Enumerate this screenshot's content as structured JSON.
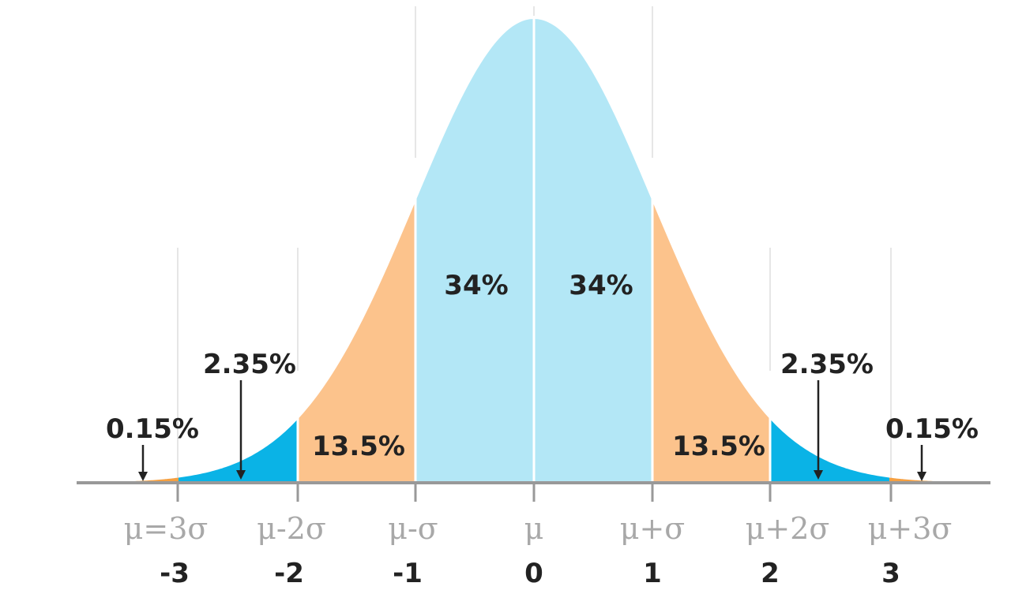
{
  "colors": {
    "tail": "#f5a042",
    "two_sigma": "#0ab3e6",
    "one_sigma": "#fcc38c",
    "center": "#b3e7f6",
    "axis": "#999999",
    "guides": "#e6e6e6",
    "text": "#222222",
    "symbols": "#a8a8a8"
  },
  "regions": [
    {
      "id": "left-tail",
      "from": -3.6,
      "to": -3,
      "color_key": "tail"
    },
    {
      "id": "left-2sd",
      "from": -3,
      "to": -2,
      "color_key": "two_sigma"
    },
    {
      "id": "left-1sd",
      "from": -2,
      "to": -1,
      "color_key": "one_sigma"
    },
    {
      "id": "left-center",
      "from": -1,
      "to": 0,
      "color_key": "center"
    },
    {
      "id": "right-center",
      "from": 0,
      "to": 1,
      "color_key": "center"
    },
    {
      "id": "right-1sd",
      "from": 1,
      "to": 2,
      "color_key": "one_sigma"
    },
    {
      "id": "right-2sd",
      "from": 2,
      "to": 3,
      "color_key": "two_sigma"
    },
    {
      "id": "right-tail",
      "from": 3,
      "to": 3.6,
      "color_key": "tail"
    }
  ],
  "percent_labels": {
    "center_left": "34%",
    "center_right": "34%",
    "one_sigma_left": "13.5%",
    "one_sigma_right": "13.5%",
    "two_sigma_left": "2.35%",
    "two_sigma_right": "2.35%",
    "tail_left": "0.15%",
    "tail_right": "0.15%"
  },
  "axis": {
    "symbols": [
      "μ=3σ",
      "μ-2σ",
      "μ-σ",
      "μ",
      "μ+σ",
      "μ+2σ",
      "μ+3σ"
    ],
    "numbers": [
      "-3",
      "-2",
      "-1",
      "0",
      "1",
      "2",
      "3"
    ]
  }
}
